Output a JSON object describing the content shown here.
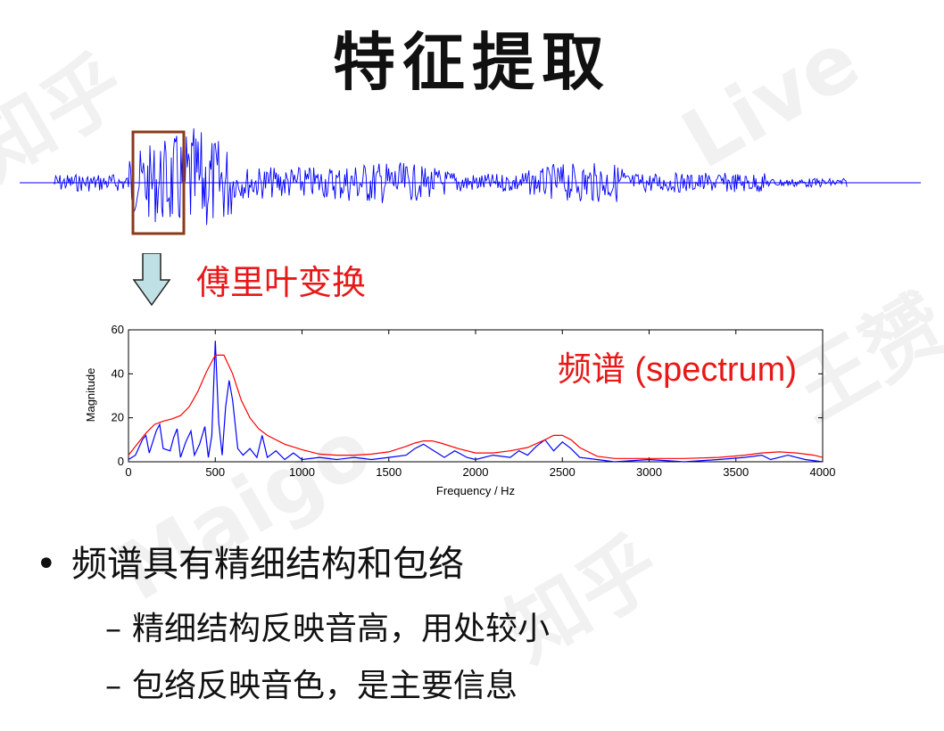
{
  "slide": {
    "title": "特征提取",
    "fourier_label": "傅里叶变换",
    "bullet_marker": "•",
    "bullet_main": "频谱具有精细结构和包络",
    "sub_marker": "–",
    "sub_bullets": [
      "精细结构反映音高，用处较小",
      "包络反映音色，是主要信息"
    ],
    "watermark": [
      "知乎",
      "Maigo",
      "Live",
      "王赟"
    ]
  },
  "chart_data": {
    "type": "line",
    "title": "",
    "annotation": "频谱 (spectrum)",
    "xlabel": "Frequency / Hz",
    "ylabel": "Magnitude",
    "xlim": [
      0,
      4000
    ],
    "ylim": [
      0,
      60
    ],
    "x_ticks": [
      0,
      500,
      1000,
      1500,
      2000,
      2500,
      3000,
      3500,
      4000
    ],
    "y_ticks": [
      0,
      20,
      40,
      60
    ],
    "series": [
      {
        "name": "",
        "color": "#0000ff",
        "x": [
          0,
          40,
          80,
          100,
          120,
          160,
          180,
          200,
          240,
          260,
          280,
          300,
          330,
          360,
          380,
          410,
          440,
          460,
          480,
          500,
          520,
          540,
          560,
          580,
          600,
          630,
          660,
          700,
          740,
          770,
          800,
          850,
          900,
          950,
          1000,
          1100,
          1200,
          1300,
          1400,
          1500,
          1600,
          1650,
          1700,
          1740,
          1780,
          1820,
          1880,
          1950,
          2000,
          2100,
          2200,
          2250,
          2300,
          2350,
          2400,
          2450,
          2500,
          2550,
          2600,
          2700,
          2800,
          3000,
          3200,
          3400,
          3550,
          3650,
          3700,
          3800,
          3850,
          3900,
          4000
        ],
        "y": [
          1,
          3,
          10,
          12,
          4,
          14,
          17,
          6,
          5,
          11,
          15,
          2,
          9,
          14,
          3,
          8,
          16,
          2,
          12,
          55,
          18,
          3,
          25,
          37,
          28,
          6,
          3,
          6,
          2,
          12,
          2,
          5,
          1,
          4,
          1,
          2,
          1,
          2,
          1,
          2,
          3,
          6,
          8,
          6,
          4,
          2,
          5,
          2,
          1,
          3,
          2,
          5,
          3,
          7,
          10,
          5,
          9,
          6,
          2,
          1,
          0,
          1,
          0,
          1,
          2,
          3,
          1,
          3,
          2,
          1,
          0
        ]
      },
      {
        "name": "",
        "color": "#ff0000",
        "x": [
          0,
          50,
          100,
          150,
          200,
          250,
          300,
          350,
          400,
          450,
          500,
          550,
          600,
          650,
          700,
          750,
          800,
          900,
          1000,
          1100,
          1200,
          1300,
          1400,
          1500,
          1600,
          1650,
          1700,
          1750,
          1800,
          1900,
          2000,
          2100,
          2200,
          2300,
          2400,
          2450,
          2500,
          2550,
          2600,
          2700,
          2800,
          3000,
          3200,
          3400,
          3550,
          3650,
          3750,
          3850,
          3950,
          4000
        ],
        "y": [
          3,
          8,
          13,
          17,
          18.5,
          19.5,
          21,
          25,
          32,
          41,
          48.5,
          48.5,
          40,
          28,
          20,
          15,
          12,
          8,
          5.5,
          3.5,
          3,
          3,
          3.5,
          4.5,
          7,
          8.5,
          9.5,
          9.5,
          8.5,
          6,
          4,
          4,
          5,
          6.5,
          10,
          12,
          12,
          10,
          6.5,
          2.5,
          1.5,
          1.5,
          1.5,
          2,
          3,
          4,
          4.5,
          4,
          3,
          2
        ]
      }
    ],
    "grid": false,
    "frame": "box"
  }
}
